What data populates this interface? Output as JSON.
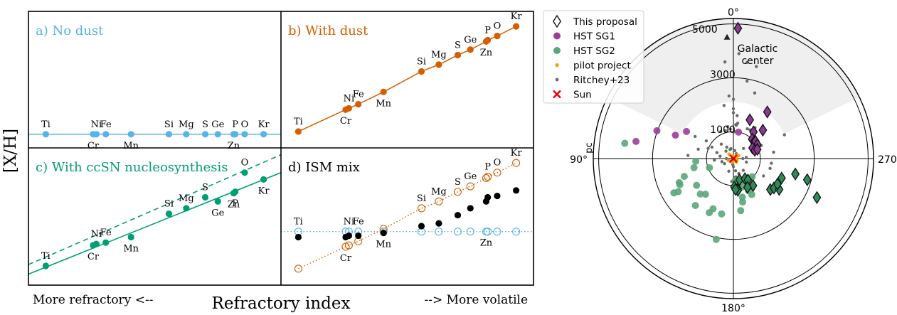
{
  "chart_data": [
    {
      "type": "scatter",
      "ylabel": "[X/H]",
      "xlabel": "Refractory index",
      "xlabel_left": "More refractory <--",
      "xlabel_right": "--> More volatile",
      "colors": {
        "nodust": "#56b4e9",
        "dust": "#d55e00",
        "ccsn": "#009e73",
        "black": "#000000"
      },
      "panels": [
        {
          "id": "a",
          "title": "a) No dust",
          "elements": [
            {
              "el": "Ti",
              "x": 0.55,
              "y": 0.0,
              "lab": "above"
            },
            {
              "el": "Cr",
              "x": 2.05,
              "y": 0.0,
              "lab": "below"
            },
            {
              "el": "Ni",
              "x": 2.15,
              "y": 0.0,
              "lab": "above"
            },
            {
              "el": "Fe",
              "x": 2.45,
              "y": 0.0,
              "lab": "above"
            },
            {
              "el": "Mn",
              "x": 3.25,
              "y": 0.0,
              "lab": "below"
            },
            {
              "el": "Si",
              "x": 4.45,
              "y": 0.0,
              "lab": "above"
            },
            {
              "el": "Mg",
              "x": 5.0,
              "y": 0.0,
              "lab": "above"
            },
            {
              "el": "S",
              "x": 5.6,
              "y": 0.0,
              "lab": "above"
            },
            {
              "el": "Ge",
              "x": 6.0,
              "y": 0.0,
              "lab": "above"
            },
            {
              "el": "Zn",
              "x": 6.5,
              "y": 0.0,
              "lab": "below"
            },
            {
              "el": "P",
              "x": 6.55,
              "y": 0.0,
              "lab": "above"
            },
            {
              "el": "O",
              "x": 6.85,
              "y": 0.0,
              "lab": "above"
            },
            {
              "el": "Kr",
              "x": 7.45,
              "y": 0.0,
              "lab": "above"
            }
          ]
        },
        {
          "id": "b",
          "title": "b) With dust",
          "elements": [
            {
              "el": "Ti",
              "x": 0.55,
              "y": 0.1,
              "lab": "above"
            },
            {
              "el": "Cr",
              "x": 2.05,
              "y": 0.9,
              "lab": "below"
            },
            {
              "el": "Ni",
              "x": 2.15,
              "y": 0.95,
              "lab": "above"
            },
            {
              "el": "Fe",
              "x": 2.45,
              "y": 1.1,
              "lab": "above"
            },
            {
              "el": "Mn",
              "x": 3.25,
              "y": 1.55,
              "lab": "below"
            },
            {
              "el": "Si",
              "x": 4.45,
              "y": 2.3,
              "lab": "above"
            },
            {
              "el": "Mg",
              "x": 5.0,
              "y": 2.55,
              "lab": "above"
            },
            {
              "el": "S",
              "x": 5.6,
              "y": 2.9,
              "lab": "above"
            },
            {
              "el": "Ge",
              "x": 6.0,
              "y": 3.1,
              "lab": "above"
            },
            {
              "el": "Zn",
              "x": 6.5,
              "y": 3.4,
              "lab": "below"
            },
            {
              "el": "P",
              "x": 6.55,
              "y": 3.45,
              "lab": "above"
            },
            {
              "el": "O",
              "x": 6.85,
              "y": 3.6,
              "lab": "above"
            },
            {
              "el": "Kr",
              "x": 7.45,
              "y": 3.95,
              "lab": "above"
            }
          ]
        },
        {
          "id": "c",
          "title": "c) With ccSN nucleosynthesis",
          "elements": [
            {
              "el": "Ti",
              "x": 0.55,
              "y": 0.2,
              "lab": "above"
            },
            {
              "el": "Cr",
              "x": 2.05,
              "y": 0.95,
              "lab": "below"
            },
            {
              "el": "Ni",
              "x": 2.15,
              "y": 1.0,
              "lab": "above"
            },
            {
              "el": "Fe",
              "x": 2.45,
              "y": 1.05,
              "lab": "above"
            },
            {
              "el": "Mn",
              "x": 3.25,
              "y": 1.25,
              "lab": "below"
            },
            {
              "el": "Si",
              "x": 4.45,
              "y": 2.1,
              "lab": "above"
            },
            {
              "el": "Mg",
              "x": 5.0,
              "y": 2.3,
              "lab": "above"
            },
            {
              "el": "S",
              "x": 5.6,
              "y": 2.7,
              "lab": "above"
            },
            {
              "el": "Ge",
              "x": 6.0,
              "y": 2.55,
              "lab": "below"
            },
            {
              "el": "Zn",
              "x": 6.5,
              "y": 2.85,
              "lab": "below"
            },
            {
              "el": "P",
              "x": 6.55,
              "y": 2.9,
              "lab": "below"
            },
            {
              "el": "O",
              "x": 6.85,
              "y": 3.6,
              "lab": "above"
            },
            {
              "el": "Kr",
              "x": 7.45,
              "y": 3.35,
              "lab": "below"
            }
          ],
          "line_solid": {
            "y0": -0.1,
            "y1": 3.6
          },
          "line_dashed": {
            "y0": 0.25,
            "y1": 4.25
          }
        },
        {
          "id": "d",
          "title": "d) ISM mix",
          "open_blue_y": 1.45,
          "elements": [
            {
              "el": "Ti",
              "x": 0.55,
              "y_dust": 0.1,
              "y_mix": 1.25,
              "lab": "above"
            },
            {
              "el": "Cr",
              "x": 2.05,
              "y_dust": 0.9,
              "y_mix": 1.25,
              "lab": "below"
            },
            {
              "el": "Ni",
              "x": 2.15,
              "y_dust": 0.95,
              "y_mix": 1.3,
              "lab": "above"
            },
            {
              "el": "Fe",
              "x": 2.45,
              "y_dust": 1.1,
              "y_mix": 1.3,
              "lab": "above"
            },
            {
              "el": "Mn",
              "x": 3.25,
              "y_dust": 1.55,
              "y_mix": 1.4,
              "lab": "below"
            },
            {
              "el": "Si",
              "x": 4.45,
              "y_dust": 2.3,
              "y_mix": 1.65,
              "lab": "above"
            },
            {
              "el": "Mg",
              "x": 5.0,
              "y_dust": 2.55,
              "y_mix": 1.75,
              "lab": "above"
            },
            {
              "el": "S",
              "x": 5.6,
              "y_dust": 2.9,
              "y_mix": 2.05,
              "lab": "above"
            },
            {
              "el": "Ge",
              "x": 6.0,
              "y_dust": 3.1,
              "y_mix": 2.3,
              "lab": "above"
            },
            {
              "el": "Zn",
              "x": 6.5,
              "y_dust": 3.4,
              "y_mix": 2.55,
              "lab": "below"
            },
            {
              "el": "P",
              "x": 6.55,
              "y_dust": 3.45,
              "y_mix": 2.7,
              "lab": "above"
            },
            {
              "el": "O",
              "x": 6.85,
              "y_dust": 3.6,
              "y_mix": 2.75,
              "lab": "above"
            },
            {
              "el": "Kr",
              "x": 7.45,
              "y_dust": 3.95,
              "y_mix": 2.95,
              "lab": "above"
            }
          ]
        }
      ],
      "xlim": [
        0,
        8
      ],
      "ylim": [
        -0.5,
        4.5
      ]
    },
    {
      "type": "scatter",
      "projection": "polar",
      "unit": "pc",
      "theta_labels": [
        "0°",
        "90°",
        "180°",
        "270°"
      ],
      "r_labels": [
        "1000",
        "3000",
        "5000"
      ],
      "r_values": [
        1000,
        3000,
        5000
      ],
      "rmax": 5200,
      "annotation": "Galactic\ncenter",
      "annotation_line1": "Galactic",
      "annotation_line2": "center",
      "gc_point": {
        "l": 3,
        "d": 4500
      },
      "shaded_region": {
        "l_min": -64,
        "l_max": 64,
        "d_min": 2100
      },
      "colors": {
        "this_proposal": "#2f8a57",
        "this_proposal_north": "#8a3a8f",
        "hst_sg1": "#9b3d9b",
        "hst_sg2": "#5aa679",
        "pilot": "#f5a000",
        "ritchey": "#6b6b6b",
        "sun": "#e00000"
      },
      "legend": [
        {
          "key": "this_proposal",
          "label": "This proposal"
        },
        {
          "key": "hst_sg1",
          "label": "HST SG1"
        },
        {
          "key": "hst_sg2",
          "label": "HST SG2"
        },
        {
          "key": "pilot",
          "label": "pilot project"
        },
        {
          "key": "ritchey",
          "label": "Ritchey+23"
        },
        {
          "key": "sun",
          "label": "Sun"
        }
      ],
      "series": {
        "this_proposal_north": [
          [
            -2,
            4840
          ],
          [
            -23,
            1560
          ],
          [
            -36,
            2140
          ],
          [
            -37,
            1240
          ],
          [
            -46,
            1520
          ],
          [
            -44,
            1000
          ],
          [
            -51,
            1000
          ],
          [
            -52,
            1040
          ],
          [
            -60,
            1030
          ],
          [
            -61,
            810
          ],
          [
            -69,
            850
          ],
          [
            -69,
            950
          ]
        ],
        "this_proposal": [
          [
            -178,
            1050
          ],
          [
            -172,
            1140
          ],
          [
            -172,
            1190
          ],
          [
            -176,
            1150
          ],
          [
            -164,
            820
          ],
          [
            -150,
            860
          ],
          [
            -146,
            960
          ],
          [
            -144,
            1240
          ],
          [
            -154,
            1190
          ],
          [
            -130,
            1790
          ],
          [
            -126,
            1860
          ],
          [
            -124,
            2050
          ],
          [
            -115,
            3420
          ],
          [
            -120,
            1890
          ],
          [
            -112,
            1930
          ],
          [
            -104,
            2370
          ],
          [
            -106,
            2850
          ]
        ],
        "hst_sg1": [
          [
            -11,
            1000
          ],
          [
            80,
            3670
          ],
          [
            70,
            3020
          ],
          [
            68,
            2320
          ],
          [
            60,
            2010
          ]
        ],
        "hst_sg2": [
          [
            141,
            2240
          ],
          [
            137,
            1800
          ],
          [
            142,
            1680
          ],
          [
            126,
            1690
          ],
          [
            120,
            2550
          ],
          [
            121,
            2390
          ],
          [
            116,
            2210
          ],
          [
            114,
            2200
          ],
          [
            110,
            1940
          ],
          [
            103,
            1500
          ],
          [
            156,
            2200
          ],
          [
            158,
            2010
          ],
          [
            111,
            950
          ],
          [
            94,
            1400
          ],
          [
            82,
            4070
          ],
          [
            168,
            3070
          ],
          [
            168,
            2100
          ],
          [
            -175,
            820
          ],
          [
            -163,
            1100
          ],
          [
            -155,
            890
          ],
          [
            -153,
            1500
          ],
          [
            -155,
            1310
          ],
          [
            -134,
            970
          ],
          [
            -172,
            1950
          ],
          [
            -168,
            1650
          ],
          [
            -167,
            1470
          ],
          [
            -170,
            1030
          ]
        ],
        "pilot": [
          [
            45,
            230
          ],
          [
            -60,
            220
          ],
          [
            -40,
            160
          ],
          [
            160,
            90
          ],
          [
            170,
            140
          ],
          [
            -140,
            170
          ],
          [
            20,
            100
          ],
          [
            -80,
            100
          ],
          [
            110,
            200
          ],
          [
            -110,
            140
          ]
        ],
        "ritchey": [
          [
            -14,
            3520
          ],
          [
            -10,
            2920
          ],
          [
            4,
            2330
          ],
          [
            0,
            1850
          ],
          [
            10,
            2000
          ],
          [
            16,
            1080
          ],
          [
            -4,
            1260
          ],
          [
            6,
            1100
          ],
          [
            10,
            1200
          ],
          [
            25,
            1110
          ],
          [
            -5,
            1240
          ],
          [
            -30,
            1230
          ],
          [
            -25,
            1220
          ],
          [
            -65,
            1140
          ],
          [
            -65,
            1060
          ],
          [
            -77,
            960
          ],
          [
            -67,
            800
          ],
          [
            -76,
            900
          ],
          [
            -81,
            1510
          ],
          [
            -65,
            2090
          ],
          [
            -105,
            1410
          ],
          [
            -85,
            480
          ],
          [
            -105,
            500
          ],
          [
            -170,
            460
          ],
          [
            -180,
            300
          ],
          [
            174,
            220
          ],
          [
            160,
            500
          ],
          [
            120,
            380
          ],
          [
            80,
            500
          ],
          [
            70,
            650
          ],
          [
            62,
            900
          ],
          [
            57,
            1200
          ],
          [
            68,
            1010
          ],
          [
            105,
            440
          ],
          [
            95,
            710
          ],
          [
            86,
            1690
          ],
          [
            75,
            1350
          ],
          [
            45,
            390
          ],
          [
            30,
            490
          ],
          [
            20,
            360
          ],
          [
            -10,
            300
          ],
          [
            -30,
            210
          ],
          [
            -140,
            570
          ],
          [
            -175,
            700
          ],
          [
            176,
            850
          ],
          [
            130,
            150
          ],
          [
            90,
            260
          ],
          [
            -90,
            350
          ],
          [
            40,
            700
          ],
          [
            -45,
            530
          ],
          [
            -5,
            1600
          ],
          [
            -120,
            1290
          ],
          [
            -150,
            1200
          ],
          [
            -172,
            690
          ],
          [
            -160,
            590
          ],
          [
            0,
            2200
          ],
          [
            -8,
            3600
          ],
          [
            5,
            3600
          ],
          [
            -3,
            3900
          ],
          [
            -18,
            2560
          ],
          [
            -7,
            1320
          ],
          [
            0,
            1700
          ],
          [
            -35,
            1400
          ],
          [
            14,
            380
          ],
          [
            -2,
            1000
          ],
          [
            60,
            1640
          ],
          [
            -97,
            1420
          ]
        ],
        "sun": [
          [
            0,
            0
          ]
        ]
      }
    }
  ]
}
